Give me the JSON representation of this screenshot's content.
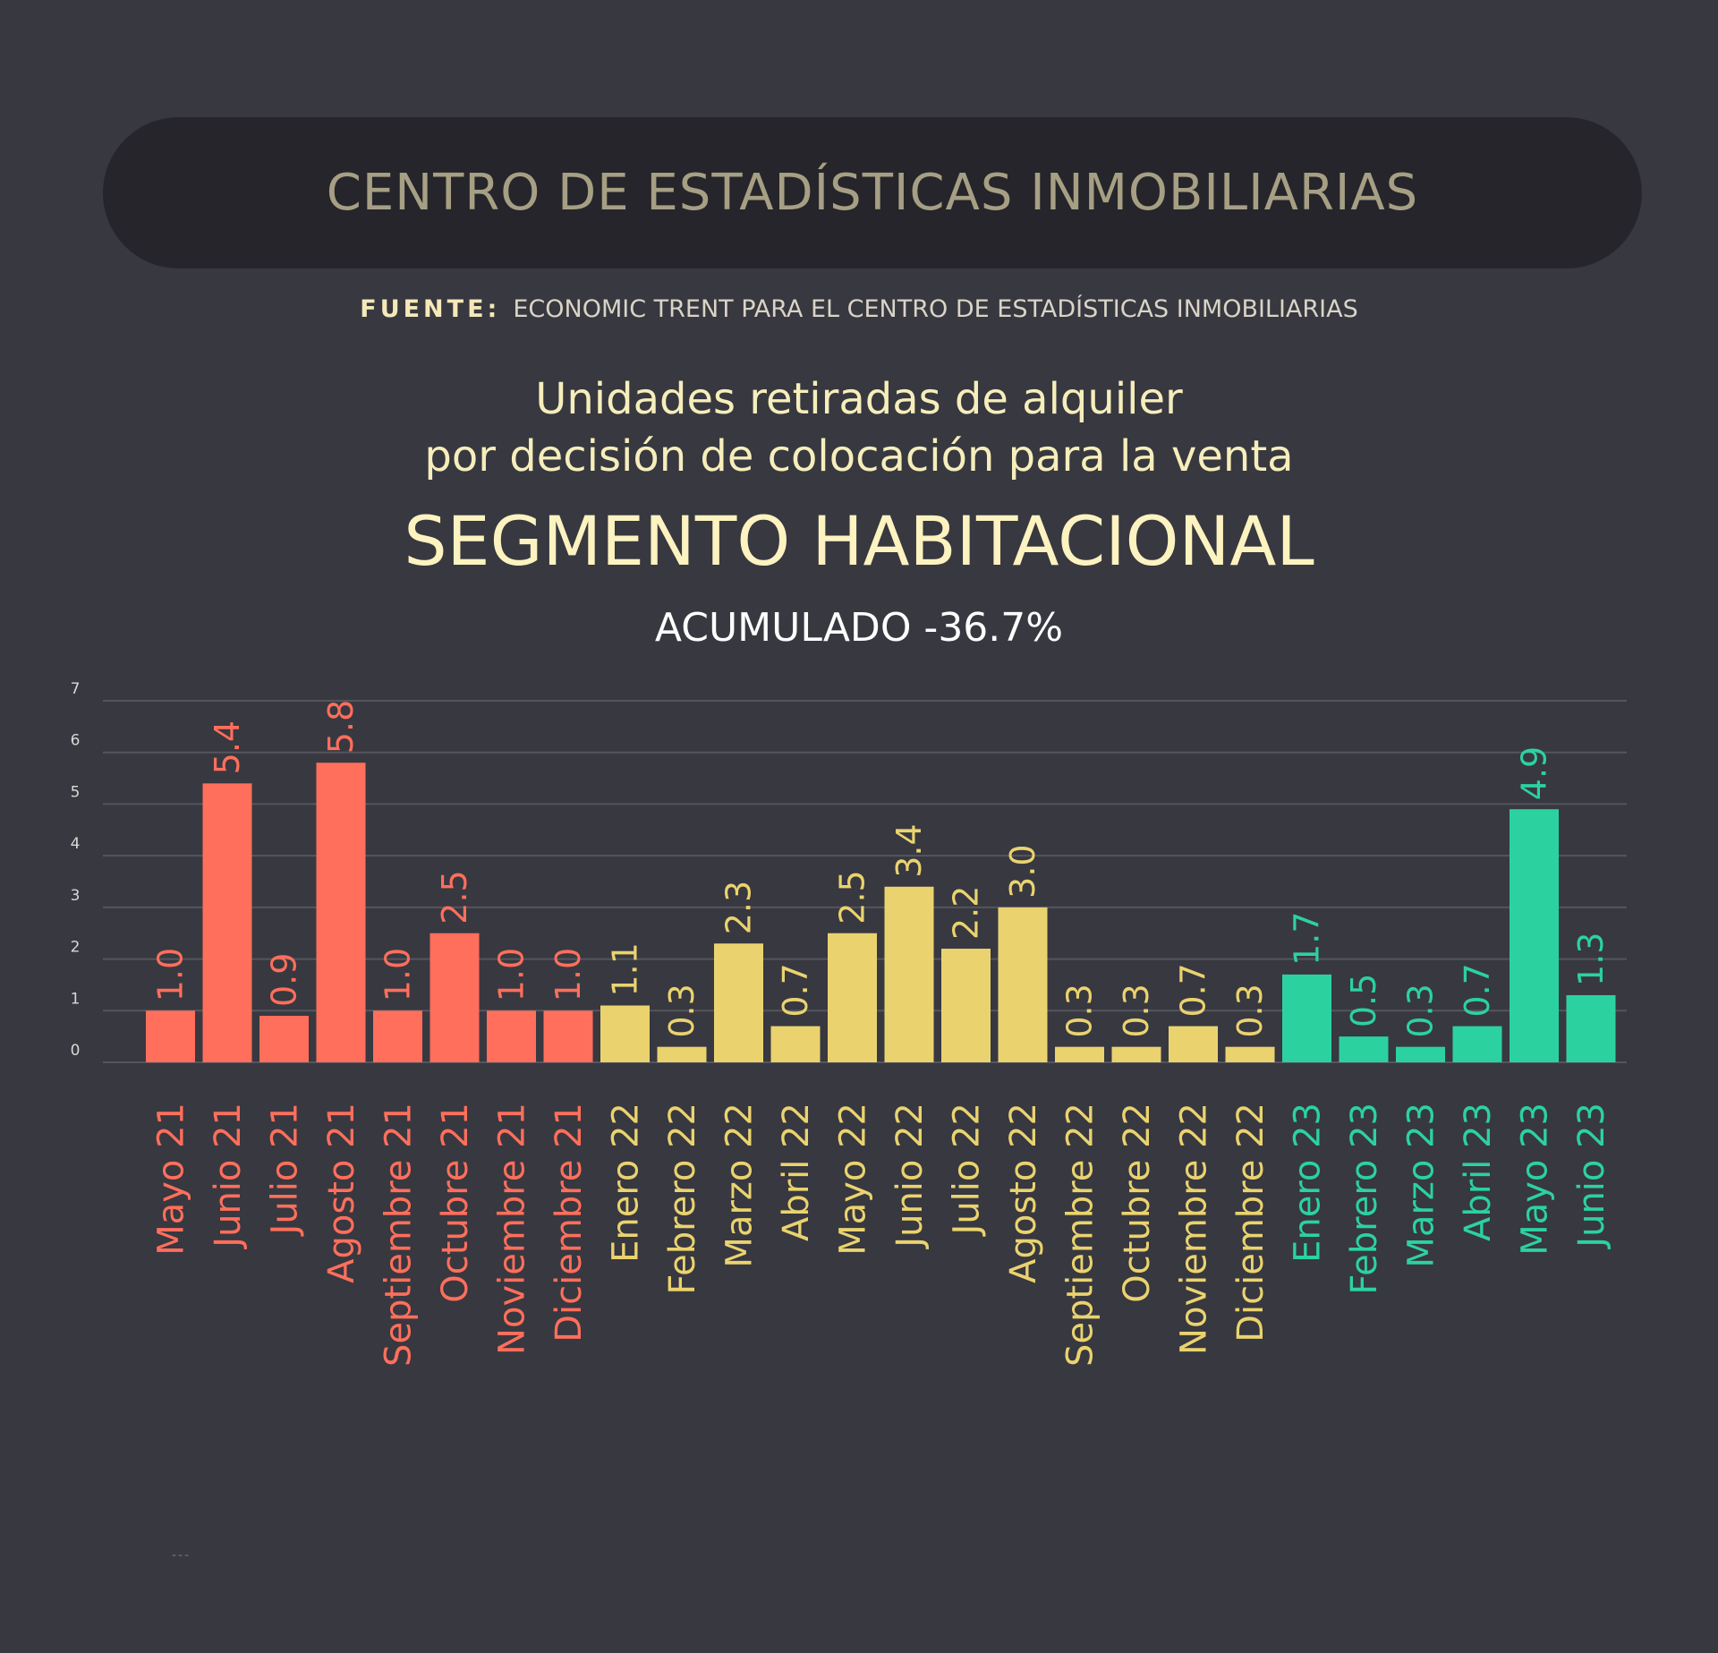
{
  "header": {
    "title": "CENTRO DE ESTADÍSTICAS INMOBILIARIAS"
  },
  "source": {
    "label": "FUENTE:",
    "text": "ECONOMIC TRENT PARA EL CENTRO DE ESTADÍSTICAS INMOBILIARIAS"
  },
  "footer": {
    "mark": "---"
  },
  "chart_data": {
    "type": "bar",
    "title": "Unidades retiradas de alquiler",
    "title_line2": "por decisión de colocación para la venta",
    "subtitle": "SEGMENTO HABITACIONAL",
    "annotation": "ACUMULADO -36.7%",
    "ylim": [
      0,
      7
    ],
    "yticks": [
      "0",
      "1",
      "2",
      "3",
      "4",
      "5",
      "6",
      "7"
    ],
    "grid": true,
    "colors": {
      "2021": "#ff6f5c",
      "2022": "#ead36f",
      "2023": "#2bd2a0"
    },
    "categories": [
      "Mayo 21",
      "Junio 21",
      "Julio 21",
      "Agosto 21",
      "Septiembre 21",
      "Octubre 21",
      "Noviembre 21",
      "Diciembre 21",
      "Enero 22",
      "Febrero 22",
      "Marzo 22",
      "Abril 22",
      "Mayo 22",
      "Junio 22",
      "Julio 22",
      "Agosto 22",
      "Septiembre 22",
      "Octubre 22",
      "Noviembre 22",
      "Diciembre 22",
      "Enero 23",
      "Febrero 23",
      "Marzo 23",
      "Abril 23",
      "Mayo 23",
      "Junio 23"
    ],
    "values": [
      1.0,
      5.4,
      0.9,
      5.8,
      1.0,
      2.5,
      1.0,
      1.0,
      1.1,
      0.3,
      2.3,
      0.7,
      2.5,
      3.4,
      2.2,
      3.0,
      0.3,
      0.3,
      0.7,
      0.3,
      1.7,
      0.5,
      0.3,
      0.7,
      4.9,
      1.3
    ],
    "value_labels": [
      "1.0",
      "5.4",
      "0.9",
      "5.8",
      "1.0",
      "2.5",
      "1.0",
      "1.0",
      "1.1",
      "0.3",
      "2.3",
      "0.7",
      "2.5",
      "3.4",
      "2.2",
      "3.0",
      "0.3",
      "0.3",
      "0.7",
      "0.3",
      "1.7",
      "0.5",
      "0.3",
      "0.7",
      "4.9",
      "1.3"
    ]
  }
}
